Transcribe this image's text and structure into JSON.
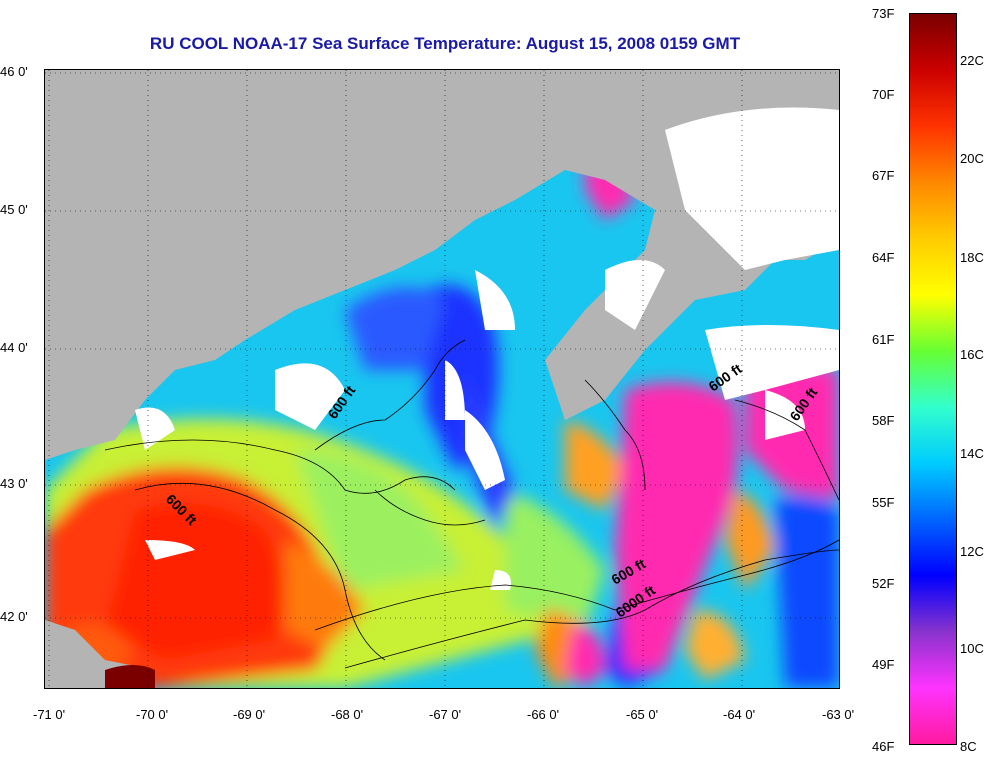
{
  "title": "RU COOL  NOAA-17  Sea Surface Temperature:  August 15, 2008 0159 GMT",
  "latitude_labels": [
    "46 0'",
    "45 0'",
    "44 0'",
    "43 0'",
    "42 0'"
  ],
  "longitude_labels": [
    "-71 0'",
    "-70 0'",
    "-69 0'",
    "-68 0'",
    "-67 0'",
    "-66 0'",
    "-65 0'",
    "-64 0'",
    "-63 0'"
  ],
  "contour_labels": [
    "600 ft",
    "600 ft",
    "600 ft",
    "600 ft",
    "600 ft",
    "6000 ft"
  ],
  "colorbar": {
    "fahrenheit": [
      "73F",
      "70F",
      "67F",
      "64F",
      "61F",
      "58F",
      "55F",
      "52F",
      "49F",
      "46F"
    ],
    "celsius": [
      "22C",
      "20C",
      "18C",
      "16C",
      "14C",
      "12C",
      "10C",
      "8C"
    ],
    "colors": [
      "#ff1aa0",
      "#ff33ff",
      "#8833cc",
      "#0000ff",
      "#0066ff",
      "#00ccff",
      "#33ffcc",
      "#66ff33",
      "#ffff00",
      "#ffcc00",
      "#ff8800",
      "#ff3300",
      "#cc0000",
      "#7a0000"
    ]
  },
  "map_colors": {
    "land": "#b4b4b4",
    "cloud": "#ffffff",
    "warm": "#ff3a1a",
    "cool": "#0a2aff",
    "cold_mask": "#ff2ab0"
  }
}
